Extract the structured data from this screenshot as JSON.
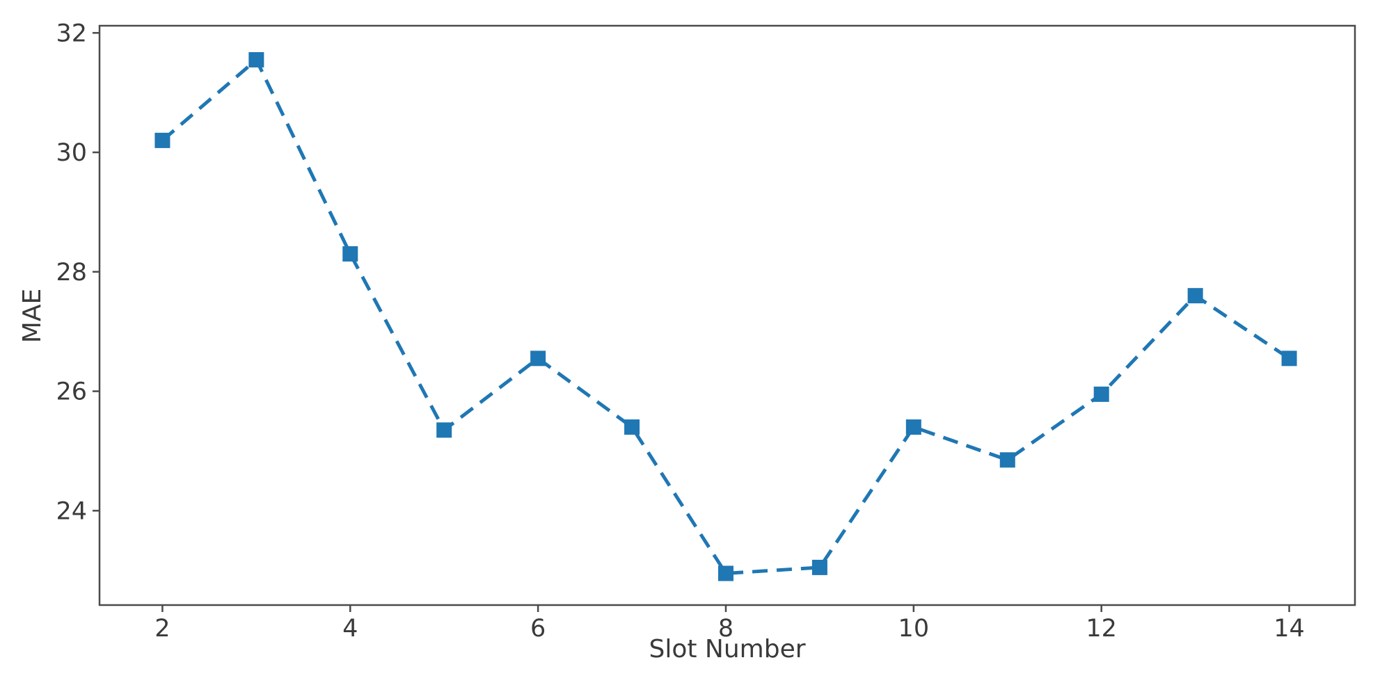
{
  "figure": {
    "background": "#ffffff"
  },
  "chart_data": {
    "type": "line",
    "title": "",
    "xlabel": "Slot Number",
    "ylabel": "MAE",
    "x": [
      2,
      3,
      4,
      5,
      6,
      7,
      8,
      9,
      10,
      11,
      12,
      13,
      14
    ],
    "series": [
      {
        "name": "MAE",
        "values": [
          30.2,
          31.55,
          28.3,
          25.35,
          26.55,
          25.4,
          22.95,
          23.05,
          25.4,
          24.85,
          25.95,
          27.6,
          26.55
        ],
        "color": "#1f77b4",
        "line_style": "dashed",
        "marker": "square"
      }
    ],
    "xticks": [
      "2",
      "4",
      "6",
      "8",
      "10",
      "12",
      "14"
    ],
    "xtick_values": [
      2,
      4,
      6,
      8,
      10,
      12,
      14
    ],
    "yticks": [
      "24",
      "26",
      "28",
      "30",
      "32"
    ],
    "ytick_values": [
      24,
      26,
      28,
      30,
      32
    ],
    "xlim": [
      1.33,
      14.7
    ],
    "ylim": [
      22.42,
      32.12
    ],
    "grid": false,
    "legend_position": "none"
  },
  "style": {
    "accent_color": "#1f77b4",
    "axis_color": "#4a4a4a",
    "text_color": "#3a3a3a"
  }
}
